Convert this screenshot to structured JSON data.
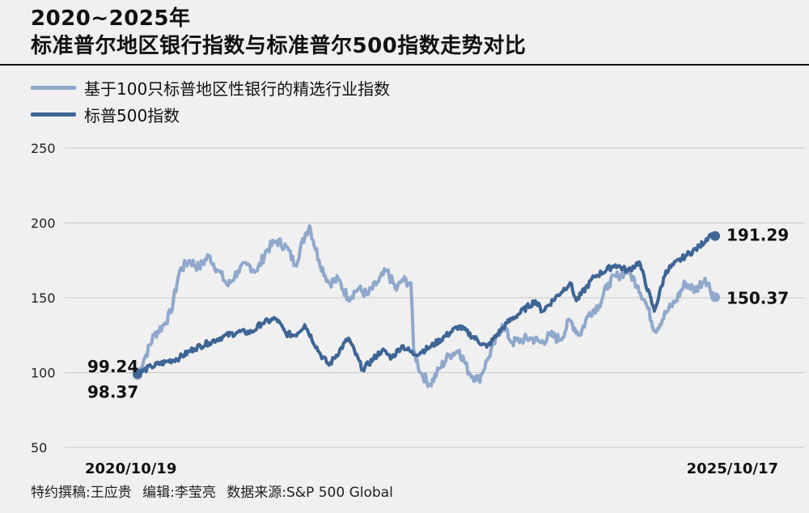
{
  "header": {
    "title_line1": "2020~2025年",
    "title_line2": "标准普尔地区银行指数与标准普尔500指数走势对比"
  },
  "legend": [
    {
      "label": "基于100只标普地区性银行的精选行业指数",
      "color": "#8fa8cc"
    },
    {
      "label": "标普500指数",
      "color": "#3d6596"
    }
  ],
  "footer": {
    "author": "特约撰稿:王应贵",
    "editor": "编辑:李莹亮",
    "source": "数据来源:S&P 500 Global"
  },
  "chart_data": {
    "type": "line",
    "title": "2020~2025年 标准普尔地区银行指数与标准普尔500指数走势对比",
    "x_range": [
      "2020/10/19",
      "2025/10/17"
    ],
    "x_tick_labels": [
      "2020/10/19",
      "2025/10/17"
    ],
    "ylim": [
      50,
      250
    ],
    "y_ticks": [
      50,
      100,
      150,
      200,
      250
    ],
    "grid": true,
    "legend_position": "top-left",
    "series": [
      {
        "name": "基于100只标普地区性银行的精选行业指数",
        "color": "#8fa8cc",
        "start_label": "98.37",
        "end_label": "150.37",
        "points": [
          [
            "2020/10/19",
            98.37
          ],
          [
            "2020/11/15",
            112
          ],
          [
            "2020/12/10",
            125
          ],
          [
            "2021/01/10",
            132
          ],
          [
            "2021/02/01",
            140
          ],
          [
            "2021/03/01",
            168
          ],
          [
            "2021/04/01",
            175
          ],
          [
            "2021/05/01",
            170
          ],
          [
            "2021/06/01",
            178
          ],
          [
            "2021/07/01",
            168
          ],
          [
            "2021/08/01",
            158
          ],
          [
            "2021/09/01",
            168
          ],
          [
            "2021/10/01",
            172
          ],
          [
            "2021/11/01",
            168
          ],
          [
            "2021/12/01",
            182
          ],
          [
            "2022/01/01",
            188
          ],
          [
            "2022/02/01",
            184
          ],
          [
            "2022/03/01",
            172
          ],
          [
            "2022/04/01",
            192
          ],
          [
            "2022/04/15",
            198
          ],
          [
            "2022/05/15",
            175
          ],
          [
            "2022/06/15",
            160
          ],
          [
            "2022/07/15",
            162
          ],
          [
            "2022/08/15",
            150
          ],
          [
            "2022/09/15",
            156
          ],
          [
            "2022/10/15",
            152
          ],
          [
            "2022/11/15",
            160
          ],
          [
            "2022/12/15",
            168
          ],
          [
            "2023/01/15",
            155
          ],
          [
            "2023/02/01",
            162
          ],
          [
            "2023/03/01",
            160
          ],
          [
            "2023/03/10",
            115
          ],
          [
            "2023/04/01",
            100
          ],
          [
            "2023/05/01",
            92
          ],
          [
            "2023/06/01",
            103
          ],
          [
            "2023/07/01",
            112
          ],
          [
            "2023/08/01",
            115
          ],
          [
            "2023/09/01",
            100
          ],
          [
            "2023/10/01",
            95
          ],
          [
            "2023/11/01",
            110
          ],
          [
            "2023/12/15",
            132
          ],
          [
            "2024/01/15",
            120
          ],
          [
            "2024/02/15",
            122
          ],
          [
            "2024/03/15",
            123
          ],
          [
            "2024/04/15",
            120
          ],
          [
            "2024/05/15",
            125
          ],
          [
            "2024/06/15",
            122
          ],
          [
            "2024/07/15",
            135
          ],
          [
            "2024/08/15",
            125
          ],
          [
            "2024/09/15",
            140
          ],
          [
            "2024/10/15",
            145
          ],
          [
            "2024/11/15",
            160
          ],
          [
            "2024/12/15",
            165
          ],
          [
            "2025/01/15",
            168
          ],
          [
            "2025/02/15",
            158
          ],
          [
            "2025/03/15",
            145
          ],
          [
            "2025/04/10",
            128
          ],
          [
            "2025/05/15",
            140
          ],
          [
            "2025/06/15",
            148
          ],
          [
            "2025/07/15",
            160
          ],
          [
            "2025/08/15",
            155
          ],
          [
            "2025/09/15",
            163
          ],
          [
            "2025/10/17",
            150.37
          ]
        ]
      },
      {
        "name": "标普500指数",
        "color": "#3d6596",
        "start_label": "99.24",
        "end_label": "191.29",
        "points": [
          [
            "2020/10/19",
            99.24
          ],
          [
            "2020/12/01",
            104
          ],
          [
            "2021/01/15",
            107
          ],
          [
            "2021/03/01",
            110
          ],
          [
            "2021/04/15",
            116
          ],
          [
            "2021/06/01",
            120
          ],
          [
            "2021/07/15",
            124
          ],
          [
            "2021/09/01",
            127
          ],
          [
            "2021/10/15",
            127
          ],
          [
            "2021/11/15",
            133
          ],
          [
            "2021/12/31",
            136
          ],
          [
            "2022/01/31",
            126
          ],
          [
            "2022/03/01",
            125
          ],
          [
            "2022/03/31",
            132
          ],
          [
            "2022/05/20",
            112
          ],
          [
            "2022/06/16",
            105
          ],
          [
            "2022/08/16",
            123
          ],
          [
            "2022/09/30",
            102
          ],
          [
            "2022/11/30",
            115
          ],
          [
            "2022/12/31",
            110
          ],
          [
            "2023/02/01",
            118
          ],
          [
            "2023/03/13",
            112
          ],
          [
            "2023/05/01",
            117
          ],
          [
            "2023/07/31",
            131
          ],
          [
            "2023/10/27",
            117
          ],
          [
            "2023/12/29",
            133
          ],
          [
            "2024/03/28",
            148
          ],
          [
            "2024/04/19",
            141
          ],
          [
            "2024/07/16",
            160
          ],
          [
            "2024/08/05",
            148
          ],
          [
            "2024/09/30",
            164
          ],
          [
            "2024/12/06",
            172
          ],
          [
            "2025/01/15",
            168
          ],
          [
            "2025/02/19",
            174
          ],
          [
            "2025/04/08",
            141
          ],
          [
            "2025/05/15",
            168
          ],
          [
            "2025/07/15",
            178
          ],
          [
            "2025/08/28",
            184
          ],
          [
            "2025/09/30",
            192
          ],
          [
            "2025/10/17",
            191.29
          ]
        ]
      }
    ]
  }
}
